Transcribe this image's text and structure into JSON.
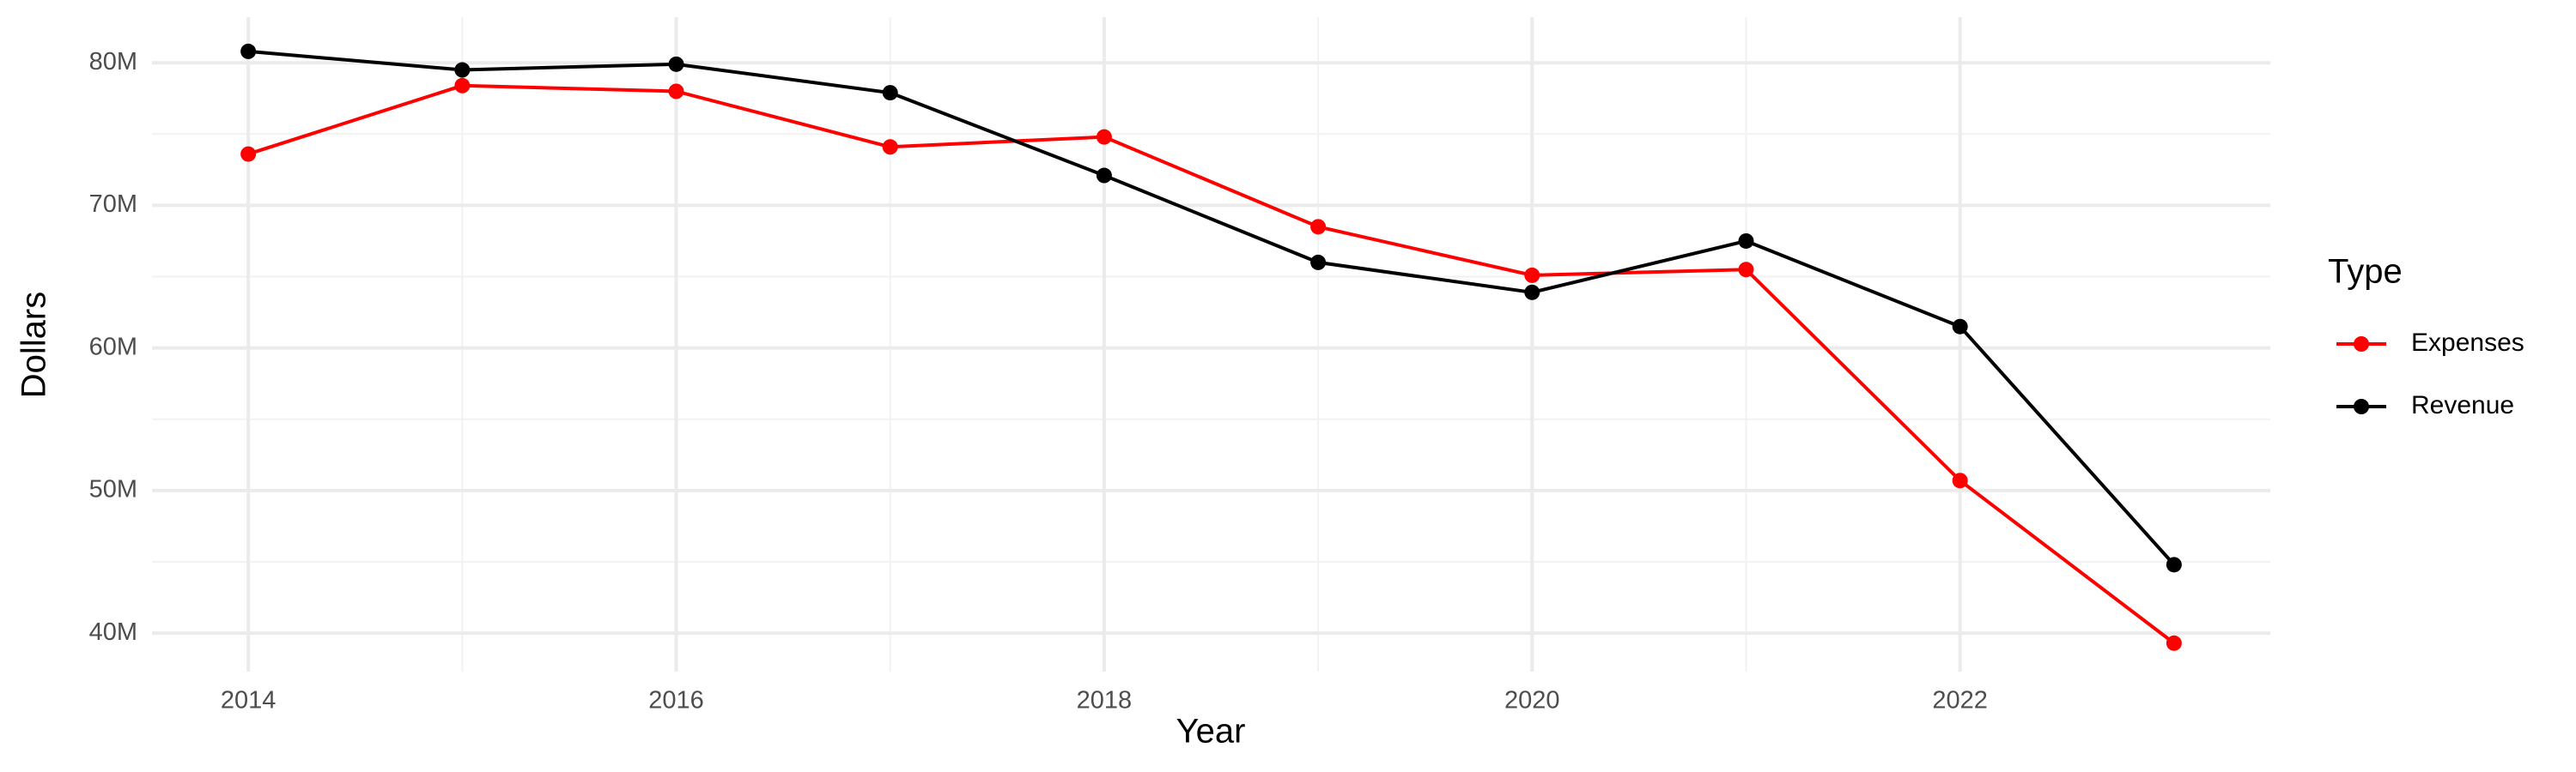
{
  "chart_data": {
    "type": "line",
    "x_label": "Year",
    "y_label": "Dollars",
    "legend_title": "Type",
    "legend": "right",
    "grid": true,
    "x": [
      2014,
      2015,
      2016,
      2017,
      2018,
      2019,
      2020,
      2021,
      2022,
      2023
    ],
    "series": [
      {
        "name": "Expenses",
        "color": "#ff0000",
        "values": [
          73600000,
          78400000,
          78000000,
          74100000,
          74800000,
          68500000,
          65100000,
          65500000,
          50700000,
          39300000
        ]
      },
      {
        "name": "Revenue",
        "color": "#000000",
        "values": [
          80800000,
          79500000,
          79900000,
          77900000,
          72100000,
          66000000,
          63900000,
          67500000,
          61500000,
          44800000
        ]
      }
    ],
    "xlim": [
      2013.55,
      2023.45
    ],
    "xticks": [
      2014,
      2016,
      2018,
      2020,
      2022
    ],
    "ylim": [
      37300000,
      83200000
    ],
    "yticks": [
      {
        "value": 40000000,
        "label": "40M"
      },
      {
        "value": 50000000,
        "label": "50M"
      },
      {
        "value": 60000000,
        "label": "60M"
      },
      {
        "value": 70000000,
        "label": "70M"
      },
      {
        "value": 80000000,
        "label": "80M"
      }
    ]
  }
}
